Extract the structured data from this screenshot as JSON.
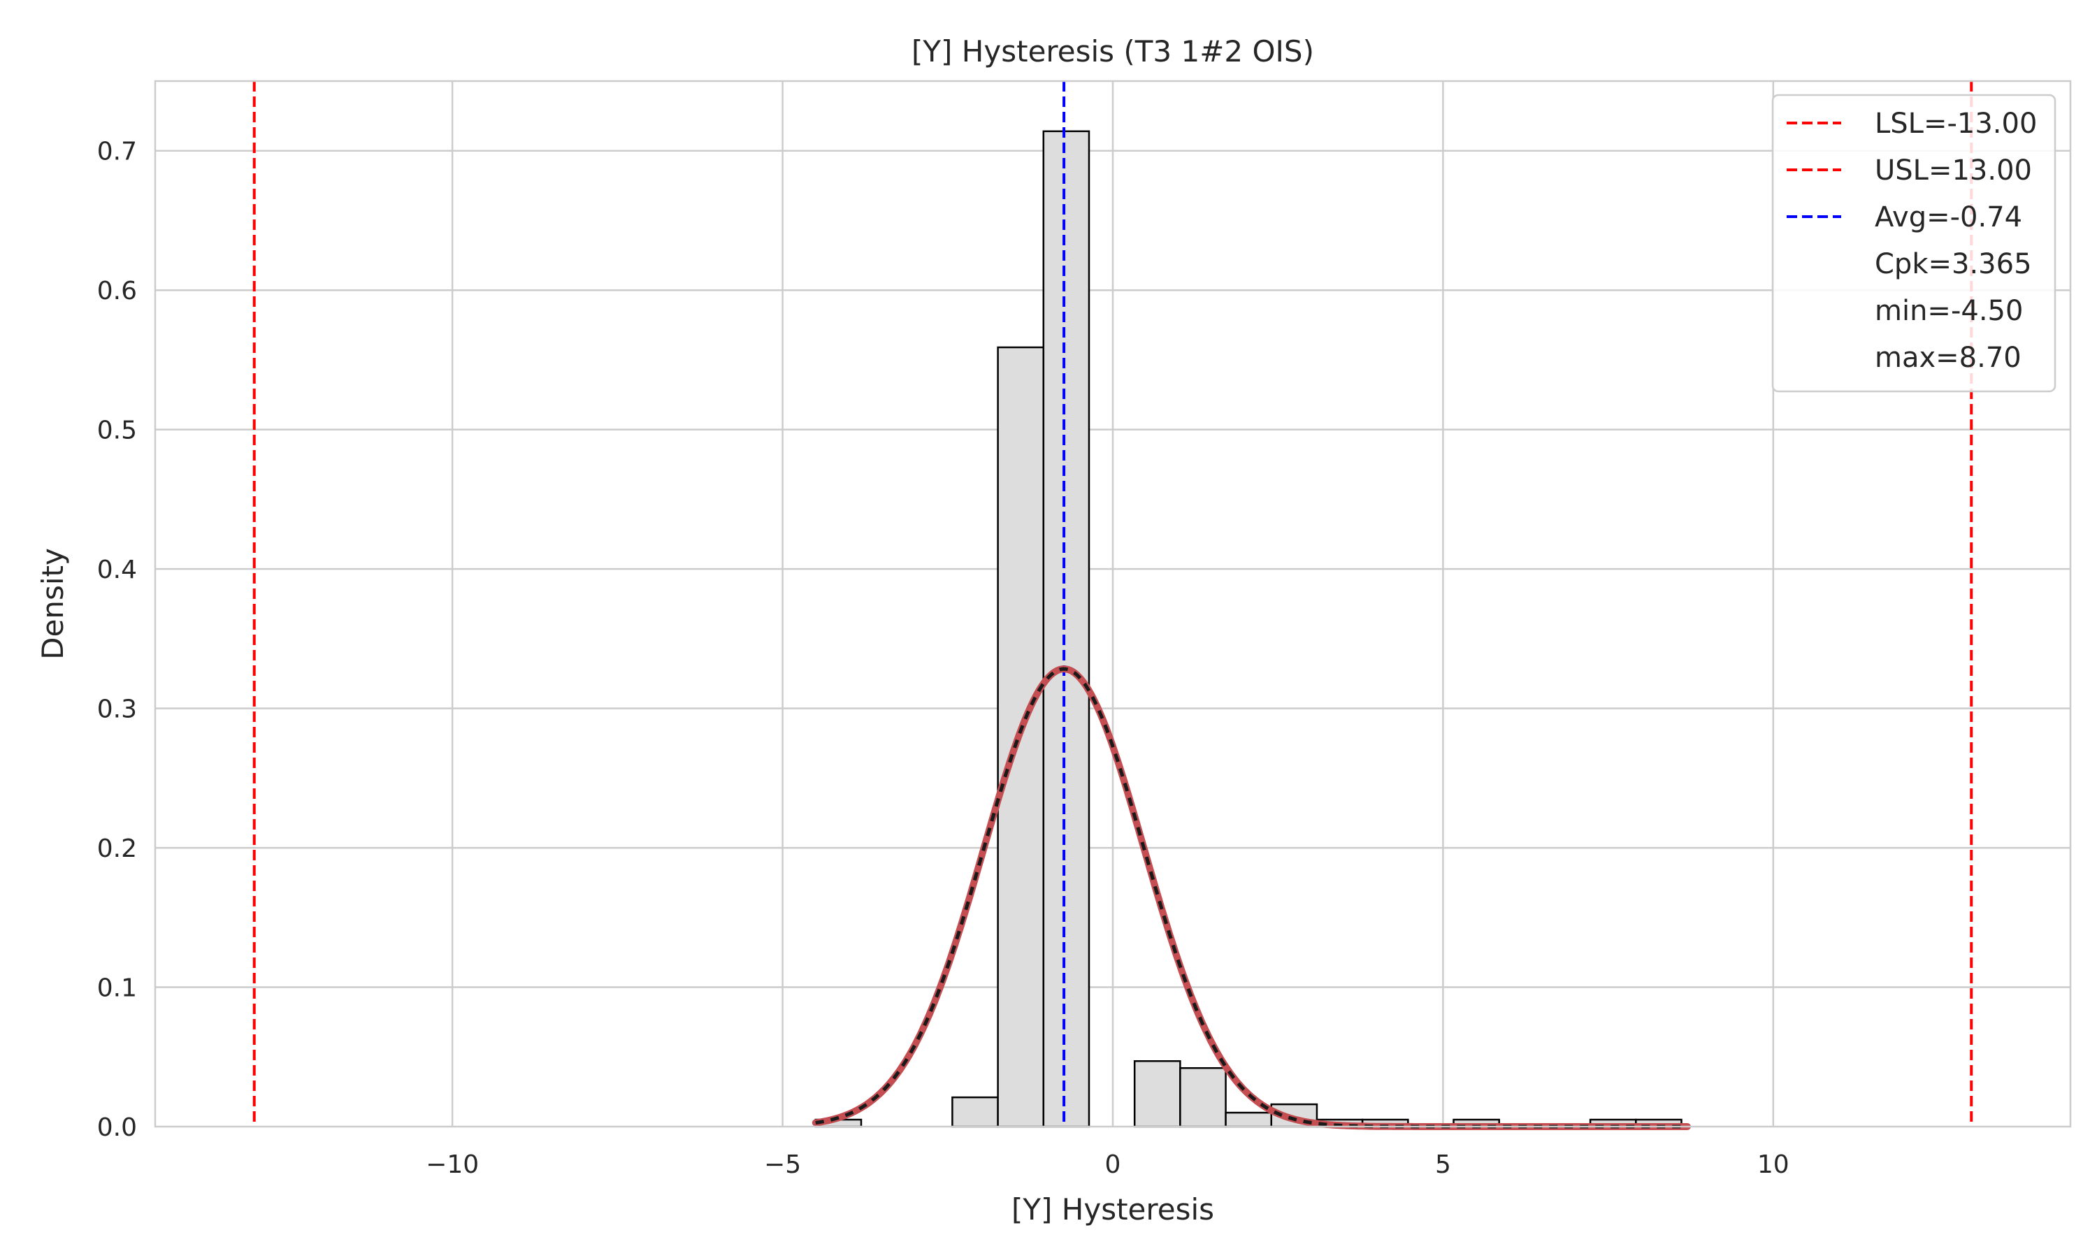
{
  "chart_data": {
    "type": "bar",
    "title": "[Y] Hysteresis (T3 1#2 OIS)",
    "xlabel": "[Y] Hysteresis",
    "ylabel": "Density",
    "xlim": [
      -14.5,
      14.5
    ],
    "ylim": [
      0,
      0.75
    ],
    "xticks": [
      -10,
      -5,
      0,
      5,
      10
    ],
    "xtick_labels": [
      "−10",
      "−5",
      "0",
      "5",
      "10"
    ],
    "yticks": [
      0.0,
      0.1,
      0.2,
      0.3,
      0.4,
      0.5,
      0.6,
      0.7
    ],
    "ytick_labels": [
      "0.0",
      "0.1",
      "0.2",
      "0.3",
      "0.4",
      "0.5",
      "0.6",
      "0.7"
    ],
    "grid": true,
    "legend_position": "top-right",
    "bin_width": 0.69,
    "bins": [
      {
        "left": -4.5,
        "density": 0.005
      },
      {
        "left": -3.81,
        "density": 0.0
      },
      {
        "left": -3.12,
        "density": 0.0
      },
      {
        "left": -2.43,
        "density": 0.021
      },
      {
        "left": -1.74,
        "density": 0.559
      },
      {
        "left": -1.05,
        "density": 0.714
      },
      {
        "left": -0.36,
        "density": 0.0
      },
      {
        "left": 0.33,
        "density": 0.047
      },
      {
        "left": 1.02,
        "density": 0.042
      },
      {
        "left": 1.71,
        "density": 0.01
      },
      {
        "left": 2.4,
        "density": 0.016
      },
      {
        "left": 3.09,
        "density": 0.005
      },
      {
        "left": 3.78,
        "density": 0.005
      },
      {
        "left": 4.47,
        "density": 0.0
      },
      {
        "left": 5.16,
        "density": 0.005
      },
      {
        "left": 5.85,
        "density": 0.0
      },
      {
        "left": 6.54,
        "density": 0.0
      },
      {
        "left": 7.23,
        "density": 0.005
      },
      {
        "left": 7.92,
        "density": 0.005
      }
    ],
    "normal_curve": {
      "mean": -0.74,
      "std": 1.215,
      "x_range": [
        -4.5,
        8.7
      ]
    },
    "reference_lines": [
      {
        "label": "LSL=-13.00",
        "x": -13.0,
        "color": "#ff0000"
      },
      {
        "label": "USL=13.00",
        "x": 13.0,
        "color": "#ff0000"
      },
      {
        "label": "Avg=-0.74",
        "x": -0.74,
        "color": "#0000ff"
      }
    ],
    "legend_text_entries": [
      "Cpk=3.365",
      "min=-4.50",
      "max=8.70"
    ],
    "colors": {
      "bar_fill": "#dddddd",
      "bar_edge": "#000000",
      "curve": "#c44e52",
      "curve_dash": "#1a1a1a",
      "grid": "#cccccc",
      "spine": "#cccccc"
    }
  }
}
